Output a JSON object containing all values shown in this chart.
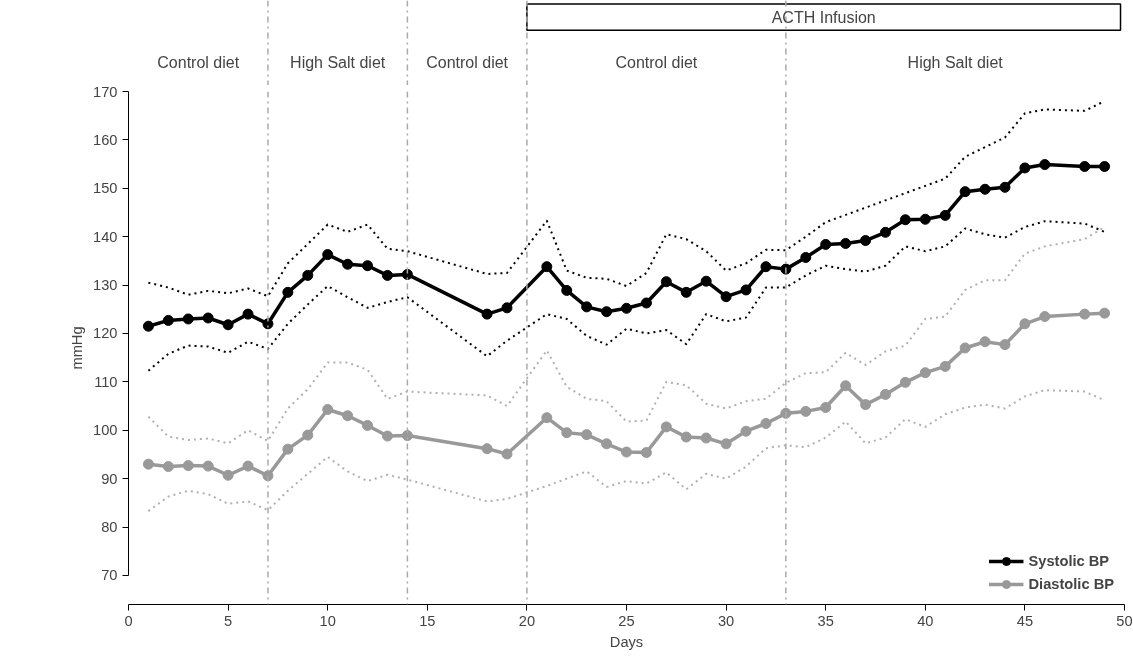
{
  "chart_data": {
    "type": "line",
    "xlabel": "Days",
    "ylabel": "mmHg",
    "x": [
      1,
      2,
      3,
      4,
      5,
      6,
      7,
      8,
      9,
      10,
      11,
      12,
      13,
      14,
      18,
      19,
      21,
      22,
      23,
      24,
      25,
      26,
      27,
      28,
      29,
      30,
      31,
      32,
      33,
      34,
      35,
      36,
      37,
      38,
      39,
      40,
      41,
      42,
      43,
      44,
      45,
      46,
      48,
      49
    ],
    "series": [
      {
        "name": "Systolic BP",
        "color": "#000000",
        "values": [
          121.5,
          122.7,
          123,
          123.2,
          121.8,
          124,
          122,
          128.5,
          132,
          136.3,
          134.3,
          134,
          132,
          132.2,
          124,
          125.3,
          133.8,
          128.9,
          125.5,
          124.5,
          125.2,
          126.3,
          130.7,
          128.5,
          130.8,
          127.6,
          129,
          133.8,
          133.3,
          135.7,
          138.4,
          138.6,
          139.2,
          140.9,
          143.5,
          143.6,
          144.4,
          149.3,
          149.8,
          150.2,
          154.2,
          154.9,
          154.5,
          154.5
        ],
        "marker": "circle"
      },
      {
        "color": "#000000",
        "line_style": "dotted",
        "marker": "none",
        "values": [
          130.5,
          129.5,
          128,
          128.8,
          128.3,
          129.3,
          127.7,
          134.5,
          138.5,
          142.5,
          141,
          142.5,
          137.5,
          137,
          132.3,
          132.5,
          143.3,
          133,
          131.5,
          131.3,
          129.8,
          132.5,
          140.5,
          139.5,
          137,
          133,
          134.5,
          137.3,
          137.2,
          140,
          143,
          144.5,
          146,
          147.5,
          149,
          150.5,
          152,
          156.5,
          158.5,
          160.5,
          165.5,
          166.3,
          166,
          168
        ]
      },
      {
        "color": "#000000",
        "line_style": "dotted",
        "marker": "none",
        "values": [
          112.3,
          115.8,
          117.5,
          117.3,
          116,
          118.3,
          116.8,
          122,
          126,
          129.8,
          127.5,
          125.3,
          126.5,
          127.5,
          115.3,
          118.5,
          124,
          123,
          119.5,
          117.7,
          121,
          120,
          120.7,
          117.8,
          124,
          122.5,
          123.3,
          129.5,
          129.5,
          132,
          134,
          133.3,
          132.8,
          134,
          138,
          137,
          138,
          141.7,
          140.5,
          139.8,
          142,
          143.2,
          142.7,
          141
        ]
      },
      {
        "color": "#b0b0b0",
        "line_style": "dotted",
        "marker": "none",
        "values": [
          102.8,
          98.7,
          98,
          98.3,
          97.3,
          100,
          97.8,
          104.5,
          108.5,
          114,
          114,
          112.5,
          106.5,
          108,
          107.2,
          105,
          116.5,
          109,
          106.5,
          106,
          101.8,
          102,
          110,
          109.3,
          105.5,
          104.5,
          106,
          106.5,
          109.8,
          111.8,
          112,
          116,
          113.5,
          116.3,
          117.5,
          123,
          123.5,
          129,
          131,
          131,
          136.5,
          138,
          139.5,
          142
        ]
      },
      {
        "color": "#b0b0b0",
        "line_style": "dotted",
        "marker": "none",
        "values": [
          83.3,
          86.3,
          87.5,
          86.8,
          84.8,
          85.3,
          83.5,
          87.5,
          91,
          94.5,
          91.5,
          89.5,
          90.8,
          89.8,
          85.3,
          85.8,
          88.5,
          90,
          91.5,
          88.3,
          89.5,
          89,
          91.3,
          87.8,
          91,
          90,
          92.5,
          96.3,
          96.9,
          96.5,
          98.5,
          101.8,
          97.3,
          98.5,
          102.3,
          100.7,
          103.3,
          104.7,
          105.3,
          104.5,
          107,
          108.3,
          108,
          106.2
        ]
      },
      {
        "name": "Diastolic BP",
        "color": "#999999",
        "values": [
          93,
          92.5,
          92.7,
          92.6,
          90.7,
          92.6,
          90.6,
          96.1,
          99,
          104.3,
          103,
          101,
          98.8,
          98.9,
          96.2,
          95.1,
          102.6,
          99.5,
          99.1,
          97.2,
          95.5,
          95.4,
          100.7,
          98.6,
          98.4,
          97.2,
          99.8,
          101.4,
          103.5,
          103.9,
          104.7,
          109.2,
          105.3,
          107.4,
          109.9,
          111.9,
          113.2,
          117,
          118.3,
          117.7,
          122,
          123.5,
          124,
          124.2
        ],
        "marker": "circle"
      }
    ],
    "xlim": [
      0,
      50
    ],
    "xticks": [
      0,
      5,
      10,
      15,
      20,
      25,
      30,
      35,
      40,
      45,
      50
    ],
    "ylim": [
      64,
      170
    ],
    "yticks": [
      70,
      80,
      90,
      100,
      110,
      120,
      130,
      140,
      150,
      160,
      170
    ],
    "ref_lines": [
      {
        "axis": "x",
        "value": 7,
        "color": "#aaaaaa",
        "line_style": "dashdot"
      },
      {
        "axis": "x",
        "value": 14,
        "color": "#aaaaaa",
        "line_style": "dashdot"
      },
      {
        "axis": "x",
        "value": 20,
        "color": "#aaaaaa",
        "line_style": "dashdot"
      },
      {
        "axis": "x",
        "value": 33,
        "color": "#aaaaaa",
        "line_style": "dashdot"
      }
    ],
    "annotations": [
      "Control diet",
      "High Salt diet",
      "Control diet",
      "Control diet",
      "High Salt diet",
      "ACTH Infusion"
    ],
    "line_style": "solid",
    "legend": "bottom right",
    "grid": false
  }
}
